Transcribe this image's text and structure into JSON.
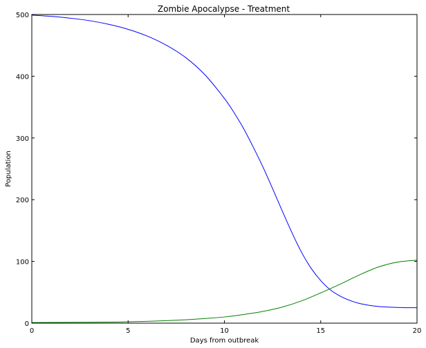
{
  "chart_data": {
    "type": "line",
    "title": "Zombie Apocalypse - Treatment",
    "xlabel": "Days from outbreak",
    "ylabel": "Population",
    "xlim": [
      0,
      20
    ],
    "ylim": [
      0,
      500
    ],
    "xticks": [
      0,
      5,
      10,
      15,
      20
    ],
    "yticks": [
      0,
      100,
      200,
      300,
      400,
      500
    ],
    "grid": false,
    "legend": "none",
    "series": [
      {
        "color": "#0000ff",
        "x": [
          0,
          1,
          2,
          3,
          4,
          5,
          6,
          7,
          8,
          9,
          10,
          10.5,
          11,
          11.5,
          12,
          12.5,
          13,
          13.5,
          14,
          14.5,
          15,
          15.5,
          16,
          16.5,
          17,
          17.5,
          18,
          18.5,
          19,
          19.5,
          20
        ],
        "y": [
          499,
          497,
          494,
          490,
          484,
          476,
          465,
          450,
          430,
          402,
          364,
          341,
          315,
          285,
          253,
          218,
          182,
          147,
          115,
          89,
          69,
          54,
          44,
          37,
          32,
          29,
          27,
          26,
          25.5,
          25,
          25
        ]
      },
      {
        "color": "#008000",
        "x": [
          0,
          2,
          4,
          5,
          6,
          7,
          8,
          9,
          10,
          11,
          12,
          13,
          14,
          15,
          16,
          17,
          18,
          19,
          20
        ],
        "y": [
          1,
          1.2,
          1.7,
          2.2,
          3,
          4,
          5.5,
          7.5,
          10,
          14,
          19,
          26,
          36,
          49,
          63,
          78,
          91,
          99,
          102
        ]
      }
    ]
  }
}
